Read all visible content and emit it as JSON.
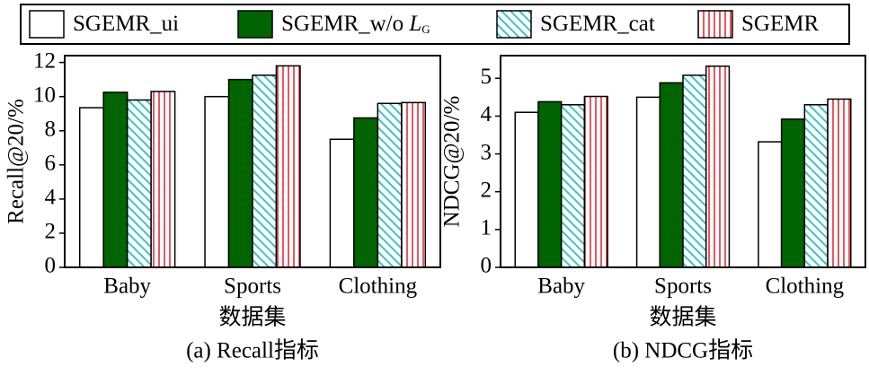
{
  "legend": {
    "series": [
      {
        "name": "SGEMR_ui",
        "color": "#ffffff",
        "pattern": "none"
      },
      {
        "name": "SGEMR_w/o ",
        "symbol": "L",
        "subscript": "G",
        "color": "#006400",
        "pattern": "none"
      },
      {
        "name": "SGEMR_cat",
        "color": "#3cc4c4",
        "pattern": "diagonal"
      },
      {
        "name": "SGEMR",
        "color": "#e0202a",
        "pattern": "vertical"
      }
    ]
  },
  "chart_data": [
    {
      "type": "bar",
      "ylabel": "Recall@20/%",
      "xlabel": "数据集",
      "caption": "(a) Recall指标",
      "categories": [
        "Baby",
        "Sports",
        "Clothing"
      ],
      "series": [
        {
          "values": [
            9.35,
            10.0,
            7.5
          ]
        },
        {
          "values": [
            10.25,
            11.0,
            8.75
          ]
        },
        {
          "values": [
            9.8,
            11.25,
            9.6
          ]
        },
        {
          "values": [
            10.3,
            11.8,
            9.65
          ]
        }
      ],
      "ylim": [
        0,
        12.4
      ],
      "yticks": [
        0,
        2,
        4,
        6,
        8,
        10,
        12
      ]
    },
    {
      "type": "bar",
      "ylabel": "NDCG@20/%",
      "xlabel": "数据集",
      "caption": "(b) NDCG指标",
      "categories": [
        "Baby",
        "Sports",
        "Clothing"
      ],
      "series": [
        {
          "values": [
            4.1,
            4.5,
            3.32
          ]
        },
        {
          "values": [
            4.38,
            4.88,
            3.92
          ]
        },
        {
          "values": [
            4.3,
            5.08,
            4.3
          ]
        },
        {
          "values": [
            4.52,
            5.32,
            4.45
          ]
        }
      ],
      "ylim": [
        0,
        5.6
      ],
      "yticks": [
        0,
        1,
        2,
        3,
        4,
        5
      ]
    }
  ]
}
